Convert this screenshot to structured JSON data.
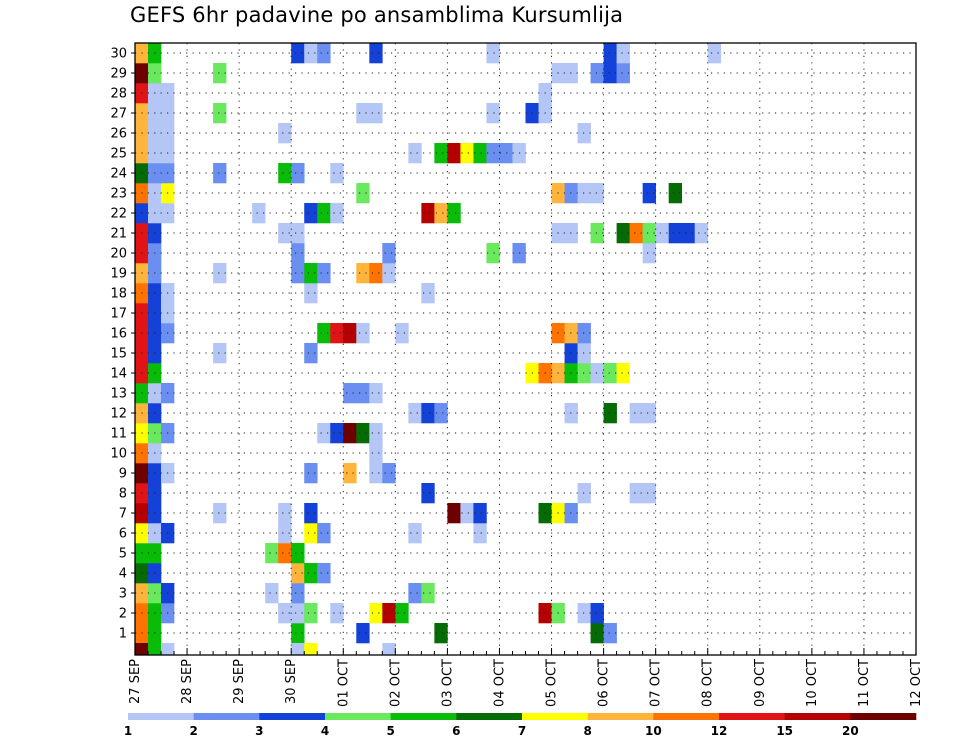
{
  "title": "GEFS 6hr padavine po ansamblima Kursumlija",
  "chart_data": {
    "type": "heatmap",
    "title": "GEFS 6hr padavine po ansamblima Kursumlija",
    "xlabel": "",
    "ylabel": "",
    "x_ticks": [
      "27 SEP",
      "28 SEP",
      "29 SEP",
      "30 SEP",
      "01 OCT",
      "02 OCT",
      "03 OCT",
      "04 OCT",
      "05 OCT",
      "06 OCT",
      "07 OCT",
      "08 OCT",
      "09 OCT",
      "10 OCT",
      "11 OCT",
      "12 OCT"
    ],
    "y_ticks": [
      "1",
      "2",
      "3",
      "4",
      "5",
      "6",
      "7",
      "8",
      "9",
      "10",
      "11",
      "12",
      "13",
      "14",
      "15",
      "16",
      "17",
      "18",
      "19",
      "20",
      "21",
      "22",
      "23",
      "24",
      "25",
      "26",
      "27",
      "28",
      "29",
      "30"
    ],
    "time_step_hours": 6,
    "members": 30,
    "grid": true,
    "legend_placement": "bottom",
    "legend": {
      "labels": [
        "1",
        "2",
        "3",
        "4",
        "5",
        "6",
        "7",
        "8",
        "10",
        "12",
        "15",
        "20"
      ],
      "colors": [
        "#b4c6f5",
        "#6a8ff0",
        "#1442d8",
        "#6ae85e",
        "#08bc08",
        "#056b05",
        "#ffff00",
        "#ffb43c",
        "#ff7300",
        "#e01414",
        "#b40000",
        "#6e0000"
      ]
    },
    "rows": [
      {
        "member": 1,
        "cells": [
          [
            0,
            8
          ],
          [
            1,
            4
          ],
          [
            12,
            4
          ],
          [
            17,
            2
          ],
          [
            23,
            5
          ],
          [
            35,
            5
          ],
          [
            36,
            1
          ]
        ]
      },
      {
        "member": 2,
        "cells": [
          [
            0,
            8
          ],
          [
            1,
            4
          ],
          [
            2,
            1
          ],
          [
            11,
            0
          ],
          [
            12,
            0
          ],
          [
            13,
            3
          ],
          [
            15,
            0
          ],
          [
            18,
            6
          ],
          [
            19,
            10
          ],
          [
            20,
            4
          ],
          [
            31,
            10
          ],
          [
            32,
            3
          ],
          [
            34,
            0
          ],
          [
            35,
            2
          ]
        ]
      },
      {
        "member": 3,
        "cells": [
          [
            0,
            7
          ],
          [
            1,
            3
          ],
          [
            2,
            2
          ],
          [
            10,
            0
          ],
          [
            12,
            1
          ],
          [
            21,
            1
          ],
          [
            22,
            3
          ]
        ]
      },
      {
        "member": 4,
        "cells": [
          [
            0,
            5
          ],
          [
            1,
            2
          ],
          [
            12,
            7
          ],
          [
            13,
            4
          ],
          [
            14,
            1
          ]
        ]
      },
      {
        "member": 5,
        "cells": [
          [
            0,
            4
          ],
          [
            1,
            4
          ],
          [
            10,
            3
          ],
          [
            11,
            8
          ],
          [
            12,
            4
          ]
        ]
      },
      {
        "member": 6,
        "cells": [
          [
            0,
            6
          ],
          [
            1,
            0
          ],
          [
            2,
            2
          ],
          [
            11,
            0
          ],
          [
            13,
            6
          ],
          [
            14,
            1
          ],
          [
            21,
            0
          ],
          [
            26,
            0
          ]
        ]
      },
      {
        "member": 7,
        "cells": [
          [
            0,
            10
          ],
          [
            1,
            2
          ],
          [
            6,
            0
          ],
          [
            11,
            0
          ],
          [
            13,
            2
          ],
          [
            24,
            11
          ],
          [
            25,
            0
          ],
          [
            26,
            2
          ],
          [
            31,
            5
          ],
          [
            32,
            6
          ],
          [
            33,
            1
          ]
        ]
      },
      {
        "member": 8,
        "cells": [
          [
            0,
            9
          ],
          [
            1,
            2
          ],
          [
            22,
            2
          ],
          [
            34,
            0
          ],
          [
            38,
            0
          ],
          [
            39,
            0
          ]
        ]
      },
      {
        "member": 9,
        "cells": [
          [
            0,
            11
          ],
          [
            1,
            2
          ],
          [
            2,
            0
          ],
          [
            13,
            1
          ],
          [
            16,
            7
          ],
          [
            18,
            0
          ],
          [
            19,
            1
          ]
        ]
      },
      {
        "member": 10,
        "cells": [
          [
            0,
            8
          ],
          [
            1,
            0
          ],
          [
            18,
            0
          ]
        ]
      },
      {
        "member": 11,
        "cells": [
          [
            0,
            6
          ],
          [
            1,
            3
          ],
          [
            2,
            1
          ],
          [
            14,
            0
          ],
          [
            15,
            2
          ],
          [
            16,
            11
          ],
          [
            17,
            5
          ],
          [
            18,
            0
          ]
        ]
      },
      {
        "member": 12,
        "cells": [
          [
            0,
            7
          ],
          [
            1,
            2
          ],
          [
            21,
            0
          ],
          [
            22,
            2
          ],
          [
            23,
            1
          ],
          [
            33,
            0
          ],
          [
            36,
            5
          ],
          [
            38,
            0
          ],
          [
            39,
            0
          ]
        ]
      },
      {
        "member": 13,
        "cells": [
          [
            0,
            4
          ],
          [
            1,
            0
          ],
          [
            2,
            1
          ],
          [
            16,
            1
          ],
          [
            17,
            1
          ],
          [
            18,
            0
          ]
        ]
      },
      {
        "member": 14,
        "cells": [
          [
            0,
            9
          ],
          [
            1,
            4
          ],
          [
            30,
            6
          ],
          [
            31,
            8
          ],
          [
            32,
            7
          ],
          [
            33,
            4
          ],
          [
            34,
            3
          ],
          [
            35,
            0
          ],
          [
            36,
            3
          ],
          [
            37,
            6
          ]
        ]
      },
      {
        "member": 15,
        "cells": [
          [
            0,
            9
          ],
          [
            1,
            2
          ],
          [
            6,
            0
          ],
          [
            13,
            1
          ],
          [
            33,
            2
          ],
          [
            34,
            0
          ]
        ]
      },
      {
        "member": 16,
        "cells": [
          [
            0,
            9
          ],
          [
            1,
            2
          ],
          [
            2,
            1
          ],
          [
            14,
            4
          ],
          [
            15,
            9
          ],
          [
            16,
            10
          ],
          [
            17,
            0
          ],
          [
            20,
            0
          ],
          [
            32,
            8
          ],
          [
            33,
            7
          ],
          [
            34,
            1
          ]
        ]
      },
      {
        "member": 17,
        "cells": [
          [
            0,
            9
          ],
          [
            1,
            2
          ],
          [
            2,
            0
          ]
        ]
      },
      {
        "member": 18,
        "cells": [
          [
            0,
            8
          ],
          [
            1,
            2
          ],
          [
            2,
            0
          ],
          [
            13,
            0
          ],
          [
            22,
            0
          ]
        ]
      },
      {
        "member": 19,
        "cells": [
          [
            0,
            7
          ],
          [
            1,
            1
          ],
          [
            6,
            0
          ],
          [
            12,
            1
          ],
          [
            13,
            4
          ],
          [
            14,
            1
          ],
          [
            17,
            7
          ],
          [
            18,
            8
          ],
          [
            19,
            0
          ]
        ]
      },
      {
        "member": 20,
        "cells": [
          [
            0,
            9
          ],
          [
            1,
            1
          ],
          [
            12,
            1
          ],
          [
            19,
            1
          ],
          [
            27,
            3
          ],
          [
            29,
            1
          ],
          [
            39,
            0
          ]
        ]
      },
      {
        "member": 21,
        "cells": [
          [
            0,
            9
          ],
          [
            1,
            2
          ],
          [
            11,
            0
          ],
          [
            12,
            0
          ],
          [
            32,
            0
          ],
          [
            33,
            0
          ],
          [
            35,
            3
          ],
          [
            37,
            5
          ],
          [
            38,
            8
          ],
          [
            39,
            3
          ],
          [
            40,
            0
          ],
          [
            41,
            2
          ],
          [
            42,
            2
          ],
          [
            43,
            0
          ]
        ]
      },
      {
        "member": 22,
        "cells": [
          [
            0,
            2
          ],
          [
            1,
            0
          ],
          [
            2,
            0
          ],
          [
            9,
            0
          ],
          [
            13,
            2
          ],
          [
            14,
            4
          ],
          [
            15,
            0
          ],
          [
            22,
            10
          ],
          [
            23,
            7
          ],
          [
            24,
            4
          ]
        ]
      },
      {
        "member": 23,
        "cells": [
          [
            0,
            8
          ],
          [
            1,
            0
          ],
          [
            2,
            6
          ],
          [
            17,
            3
          ],
          [
            32,
            7
          ],
          [
            33,
            1
          ],
          [
            34,
            0
          ],
          [
            35,
            0
          ],
          [
            39,
            2
          ],
          [
            41,
            5
          ]
        ]
      },
      {
        "member": 24,
        "cells": [
          [
            0,
            5
          ],
          [
            1,
            1
          ],
          [
            2,
            1
          ],
          [
            6,
            1
          ],
          [
            11,
            4
          ],
          [
            12,
            1
          ],
          [
            15,
            0
          ]
        ]
      },
      {
        "member": 25,
        "cells": [
          [
            0,
            7
          ],
          [
            1,
            0
          ],
          [
            2,
            0
          ],
          [
            21,
            0
          ],
          [
            23,
            4
          ],
          [
            24,
            10
          ],
          [
            25,
            6
          ],
          [
            26,
            4
          ],
          [
            27,
            1
          ],
          [
            28,
            1
          ],
          [
            29,
            0
          ]
        ]
      },
      {
        "member": 26,
        "cells": [
          [
            0,
            7
          ],
          [
            1,
            0
          ],
          [
            2,
            0
          ],
          [
            11,
            0
          ],
          [
            34,
            0
          ]
        ]
      },
      {
        "member": 27,
        "cells": [
          [
            0,
            7
          ],
          [
            1,
            0
          ],
          [
            2,
            0
          ],
          [
            6,
            3
          ],
          [
            17,
            0
          ],
          [
            18,
            0
          ],
          [
            27,
            0
          ],
          [
            30,
            2
          ],
          [
            31,
            0
          ]
        ]
      },
      {
        "member": 28,
        "cells": [
          [
            0,
            9
          ],
          [
            1,
            0
          ],
          [
            2,
            0
          ],
          [
            31,
            0
          ]
        ]
      },
      {
        "member": 29,
        "cells": [
          [
            0,
            11
          ],
          [
            1,
            3
          ],
          [
            6,
            3
          ],
          [
            32,
            0
          ],
          [
            33,
            0
          ],
          [
            35,
            1
          ],
          [
            36,
            2
          ],
          [
            37,
            1
          ]
        ]
      },
      {
        "member": 30,
        "cells": [
          [
            0,
            7
          ],
          [
            1,
            4
          ],
          [
            12,
            2
          ],
          [
            13,
            0
          ],
          [
            14,
            1
          ],
          [
            18,
            2
          ],
          [
            27,
            0
          ],
          [
            36,
            2
          ],
          [
            37,
            0
          ],
          [
            44,
            0
          ]
        ]
      }
    ],
    "bottom_partial_row": [
      [
        0,
        11
      ],
      [
        1,
        4
      ],
      [
        2,
        0
      ],
      [
        12,
        0
      ],
      [
        13,
        6
      ],
      [
        19,
        0
      ]
    ]
  }
}
